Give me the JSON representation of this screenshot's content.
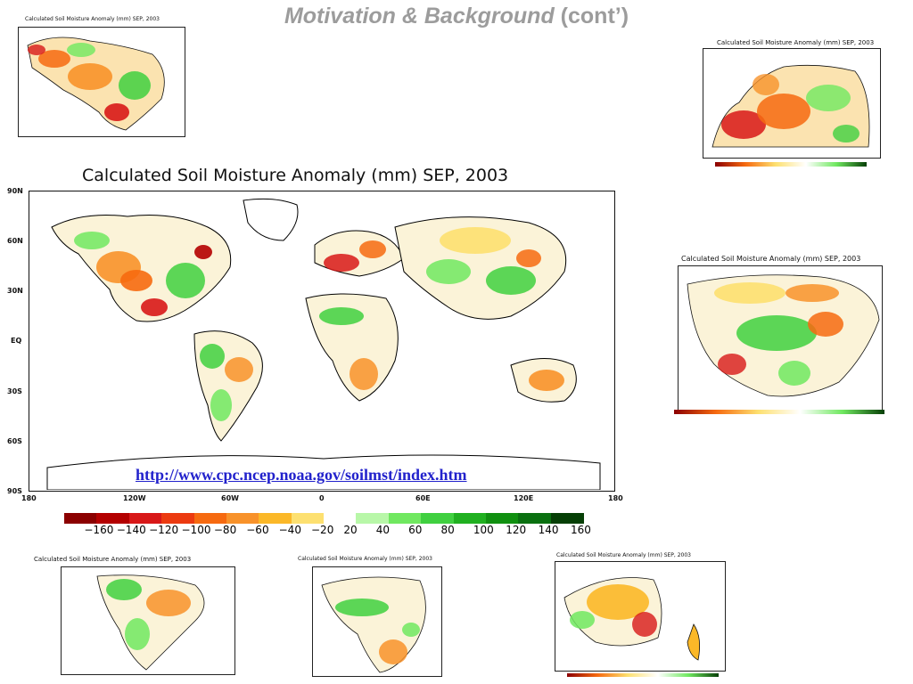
{
  "slide": {
    "title_italic": "Motivation & Background",
    "title_rest": " (cont’)",
    "url": "http://www.cpc.ncep.noaa.gov/soilmst/index.htm"
  },
  "main_map": {
    "title": "Calculated Soil Moisture Anomaly (mm) SEP, 2003",
    "lat_labels": [
      "90N",
      "60N",
      "30N",
      "EQ",
      "30S",
      "60S",
      "90S"
    ],
    "lon_labels": [
      "180",
      "120W",
      "60W",
      "0",
      "60E",
      "120E",
      "180"
    ]
  },
  "colorbar": {
    "labels": [
      "−160",
      "−140",
      "−120",
      "−100",
      "−80",
      "−60",
      "−40",
      "−20",
      "20",
      "40",
      "60",
      "80",
      "100",
      "120",
      "140",
      "160"
    ],
    "colors": [
      "#8b0000",
      "#b40000",
      "#d81818",
      "#ec3a10",
      "#f66a10",
      "#f8922a",
      "#fbb828",
      "#fde070",
      "#ffffff",
      "#b8f7a8",
      "#70e860",
      "#40d040",
      "#20b020",
      "#109010",
      "#0a7010",
      "#063f06"
    ]
  },
  "small_maps": {
    "north_america": {
      "title": "Calculated Soil Moisture Anomaly (mm) SEP, 2003"
    },
    "europe": {
      "title": "Calculated Soil Moisture Anomaly (mm) SEP, 2003"
    },
    "asia": {
      "title": "Calculated Soil Moisture Anomaly (mm) SEP, 2003"
    },
    "south_america": {
      "title": "Calculated Soil Moisture Anomaly (mm) SEP, 2003"
    },
    "africa": {
      "title": "Calculated Soil Moisture Anomaly (mm) SEP, 2003"
    },
    "australia": {
      "title": "Calculated Soil Moisture Anomaly (mm) SEP, 2003"
    }
  }
}
